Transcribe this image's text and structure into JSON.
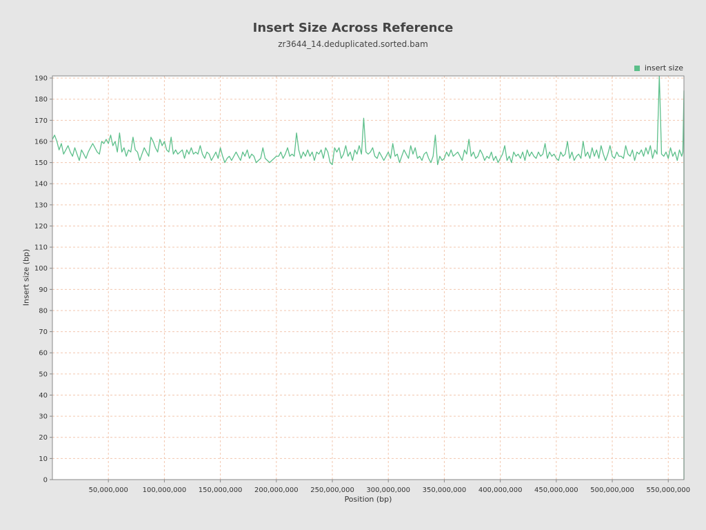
{
  "chart_data": {
    "type": "line",
    "title": "Insert Size Across Reference",
    "subtitle": "zr3644_14.deduplicated.sorted.bam",
    "xlabel": "Position (bp)",
    "ylabel": "Insert size (bp)",
    "xlim": [
      0,
      564000000
    ],
    "ylim": [
      0,
      191
    ],
    "x_ticks": [
      50000000,
      100000000,
      150000000,
      200000000,
      250000000,
      300000000,
      350000000,
      400000000,
      450000000,
      500000000,
      550000000
    ],
    "x_tick_labels": [
      "50,000,000",
      "100,000,000",
      "150,000,000",
      "200,000,000",
      "250,000,000",
      "300,000,000",
      "350,000,000",
      "400,000,000",
      "450,000,000",
      "500,000,000",
      "550,000,000"
    ],
    "y_ticks": [
      0,
      10,
      20,
      30,
      40,
      50,
      60,
      70,
      80,
      90,
      100,
      110,
      120,
      130,
      140,
      150,
      160,
      170,
      180,
      190
    ],
    "grid": true,
    "legend_position": "top-right",
    "series": [
      {
        "name": "insert size",
        "color": "#5cbf8a",
        "points": [
          [
            0,
            161
          ],
          [
            2000000,
            163
          ],
          [
            4000000,
            160
          ],
          [
            6000000,
            156
          ],
          [
            8000000,
            159
          ],
          [
            10000000,
            154
          ],
          [
            12000000,
            156
          ],
          [
            14000000,
            158
          ],
          [
            16000000,
            155
          ],
          [
            18000000,
            153
          ],
          [
            20000000,
            157
          ],
          [
            22000000,
            154
          ],
          [
            24000000,
            151
          ],
          [
            26000000,
            156
          ],
          [
            28000000,
            154
          ],
          [
            30000000,
            152
          ],
          [
            32000000,
            155
          ],
          [
            34000000,
            157
          ],
          [
            36000000,
            159
          ],
          [
            38000000,
            157
          ],
          [
            40000000,
            155
          ],
          [
            42000000,
            154
          ],
          [
            44000000,
            160
          ],
          [
            46000000,
            159
          ],
          [
            48000000,
            161
          ],
          [
            50000000,
            159
          ],
          [
            52000000,
            163
          ],
          [
            54000000,
            158
          ],
          [
            56000000,
            160
          ],
          [
            58000000,
            155
          ],
          [
            60000000,
            164
          ],
          [
            62000000,
            155
          ],
          [
            64000000,
            157
          ],
          [
            66000000,
            153
          ],
          [
            68000000,
            156
          ],
          [
            70000000,
            155
          ],
          [
            72000000,
            162
          ],
          [
            74000000,
            156
          ],
          [
            76000000,
            155
          ],
          [
            78000000,
            151
          ],
          [
            80000000,
            154
          ],
          [
            82000000,
            157
          ],
          [
            84000000,
            155
          ],
          [
            86000000,
            153
          ],
          [
            88000000,
            162
          ],
          [
            90000000,
            160
          ],
          [
            92000000,
            157
          ],
          [
            94000000,
            155
          ],
          [
            96000000,
            161
          ],
          [
            98000000,
            158
          ],
          [
            100000000,
            160
          ],
          [
            102000000,
            156
          ],
          [
            104000000,
            155
          ],
          [
            106000000,
            162
          ],
          [
            108000000,
            154
          ],
          [
            110000000,
            156
          ],
          [
            112000000,
            154
          ],
          [
            114000000,
            155
          ],
          [
            116000000,
            156
          ],
          [
            118000000,
            152
          ],
          [
            120000000,
            156
          ],
          [
            122000000,
            154
          ],
          [
            124000000,
            157
          ],
          [
            126000000,
            154
          ],
          [
            128000000,
            155
          ],
          [
            130000000,
            154
          ],
          [
            132000000,
            158
          ],
          [
            134000000,
            154
          ],
          [
            136000000,
            152
          ],
          [
            138000000,
            155
          ],
          [
            140000000,
            154
          ],
          [
            142000000,
            151
          ],
          [
            144000000,
            153
          ],
          [
            146000000,
            155
          ],
          [
            148000000,
            152
          ],
          [
            150000000,
            157
          ],
          [
            152000000,
            153
          ],
          [
            154000000,
            150
          ],
          [
            156000000,
            152
          ],
          [
            158000000,
            153
          ],
          [
            160000000,
            151
          ],
          [
            162000000,
            153
          ],
          [
            164000000,
            155
          ],
          [
            166000000,
            153
          ],
          [
            168000000,
            151
          ],
          [
            170000000,
            155
          ],
          [
            172000000,
            153
          ],
          [
            174000000,
            156
          ],
          [
            176000000,
            152
          ],
          [
            178000000,
            154
          ],
          [
            180000000,
            153
          ],
          [
            182000000,
            150
          ],
          [
            184000000,
            151
          ],
          [
            186000000,
            152
          ],
          [
            188000000,
            157
          ],
          [
            190000000,
            152
          ],
          [
            192000000,
            151
          ],
          [
            194000000,
            150
          ],
          [
            196000000,
            151
          ],
          [
            198000000,
            152
          ],
          [
            200000000,
            153
          ],
          [
            202000000,
            153
          ],
          [
            204000000,
            155
          ],
          [
            206000000,
            152
          ],
          [
            208000000,
            154
          ],
          [
            210000000,
            157
          ],
          [
            212000000,
            153
          ],
          [
            214000000,
            154
          ],
          [
            216000000,
            153
          ],
          [
            218000000,
            164
          ],
          [
            220000000,
            156
          ],
          [
            222000000,
            152
          ],
          [
            224000000,
            155
          ],
          [
            226000000,
            153
          ],
          [
            228000000,
            156
          ],
          [
            230000000,
            153
          ],
          [
            232000000,
            155
          ],
          [
            234000000,
            151
          ],
          [
            236000000,
            155
          ],
          [
            238000000,
            154
          ],
          [
            240000000,
            156
          ],
          [
            242000000,
            152
          ],
          [
            244000000,
            157
          ],
          [
            246000000,
            155
          ],
          [
            248000000,
            150
          ],
          [
            250000000,
            149
          ],
          [
            252000000,
            157
          ],
          [
            254000000,
            155
          ],
          [
            256000000,
            157
          ],
          [
            258000000,
            152
          ],
          [
            260000000,
            154
          ],
          [
            262000000,
            158
          ],
          [
            264000000,
            153
          ],
          [
            266000000,
            155
          ],
          [
            268000000,
            151
          ],
          [
            270000000,
            156
          ],
          [
            272000000,
            154
          ],
          [
            274000000,
            158
          ],
          [
            276000000,
            154
          ],
          [
            278000000,
            171
          ],
          [
            280000000,
            155
          ],
          [
            282000000,
            154
          ],
          [
            284000000,
            155
          ],
          [
            286000000,
            157
          ],
          [
            288000000,
            153
          ],
          [
            290000000,
            152
          ],
          [
            292000000,
            155
          ],
          [
            294000000,
            153
          ],
          [
            296000000,
            151
          ],
          [
            298000000,
            153
          ],
          [
            300000000,
            155
          ],
          [
            302000000,
            152
          ],
          [
            304000000,
            159
          ],
          [
            306000000,
            153
          ],
          [
            308000000,
            154
          ],
          [
            310000000,
            150
          ],
          [
            312000000,
            153
          ],
          [
            314000000,
            156
          ],
          [
            316000000,
            154
          ],
          [
            318000000,
            152
          ],
          [
            320000000,
            158
          ],
          [
            322000000,
            154
          ],
          [
            324000000,
            157
          ],
          [
            326000000,
            152
          ],
          [
            328000000,
            153
          ],
          [
            330000000,
            151
          ],
          [
            332000000,
            154
          ],
          [
            334000000,
            155
          ],
          [
            336000000,
            152
          ],
          [
            338000000,
            150
          ],
          [
            340000000,
            153
          ],
          [
            342000000,
            163
          ],
          [
            344000000,
            149
          ],
          [
            346000000,
            153
          ],
          [
            348000000,
            151
          ],
          [
            350000000,
            152
          ],
          [
            352000000,
            155
          ],
          [
            354000000,
            153
          ],
          [
            356000000,
            156
          ],
          [
            358000000,
            153
          ],
          [
            360000000,
            154
          ],
          [
            362000000,
            155
          ],
          [
            364000000,
            153
          ],
          [
            366000000,
            151
          ],
          [
            368000000,
            156
          ],
          [
            370000000,
            154
          ],
          [
            372000000,
            161
          ],
          [
            374000000,
            153
          ],
          [
            376000000,
            155
          ],
          [
            378000000,
            152
          ],
          [
            380000000,
            153
          ],
          [
            382000000,
            156
          ],
          [
            384000000,
            154
          ],
          [
            386000000,
            151
          ],
          [
            388000000,
            153
          ],
          [
            390000000,
            152
          ],
          [
            392000000,
            155
          ],
          [
            394000000,
            151
          ],
          [
            396000000,
            153
          ],
          [
            398000000,
            150
          ],
          [
            400000000,
            152
          ],
          [
            402000000,
            154
          ],
          [
            404000000,
            158
          ],
          [
            406000000,
            151
          ],
          [
            408000000,
            153
          ],
          [
            410000000,
            150
          ],
          [
            412000000,
            155
          ],
          [
            414000000,
            153
          ],
          [
            416000000,
            154
          ],
          [
            418000000,
            152
          ],
          [
            420000000,
            155
          ],
          [
            422000000,
            151
          ],
          [
            424000000,
            156
          ],
          [
            426000000,
            153
          ],
          [
            428000000,
            155
          ],
          [
            430000000,
            153
          ],
          [
            432000000,
            152
          ],
          [
            434000000,
            155
          ],
          [
            436000000,
            153
          ],
          [
            438000000,
            154
          ],
          [
            440000000,
            159
          ],
          [
            442000000,
            152
          ],
          [
            444000000,
            155
          ],
          [
            446000000,
            153
          ],
          [
            448000000,
            154
          ],
          [
            450000000,
            152
          ],
          [
            452000000,
            151
          ],
          [
            454000000,
            155
          ],
          [
            456000000,
            153
          ],
          [
            458000000,
            154
          ],
          [
            460000000,
            160
          ],
          [
            462000000,
            152
          ],
          [
            464000000,
            155
          ],
          [
            466000000,
            151
          ],
          [
            468000000,
            153
          ],
          [
            470000000,
            154
          ],
          [
            472000000,
            152
          ],
          [
            474000000,
            160
          ],
          [
            476000000,
            153
          ],
          [
            478000000,
            155
          ],
          [
            480000000,
            152
          ],
          [
            482000000,
            157
          ],
          [
            484000000,
            153
          ],
          [
            486000000,
            156
          ],
          [
            488000000,
            152
          ],
          [
            490000000,
            158
          ],
          [
            492000000,
            154
          ],
          [
            494000000,
            151
          ],
          [
            496000000,
            154
          ],
          [
            498000000,
            158
          ],
          [
            500000000,
            153
          ],
          [
            502000000,
            152
          ],
          [
            504000000,
            155
          ],
          [
            506000000,
            153
          ],
          [
            508000000,
            153
          ],
          [
            510000000,
            152
          ],
          [
            512000000,
            158
          ],
          [
            514000000,
            154
          ],
          [
            516000000,
            153
          ],
          [
            518000000,
            156
          ],
          [
            520000000,
            151
          ],
          [
            522000000,
            155
          ],
          [
            524000000,
            154
          ],
          [
            526000000,
            156
          ],
          [
            528000000,
            153
          ],
          [
            530000000,
            157
          ],
          [
            532000000,
            154
          ],
          [
            534000000,
            158
          ],
          [
            536000000,
            152
          ],
          [
            538000000,
            156
          ],
          [
            540000000,
            154
          ],
          [
            542000000,
            191
          ],
          [
            544000000,
            154
          ],
          [
            546000000,
            153
          ],
          [
            548000000,
            155
          ],
          [
            550000000,
            152
          ],
          [
            552000000,
            157
          ],
          [
            554000000,
            153
          ],
          [
            556000000,
            155
          ],
          [
            558000000,
            151
          ],
          [
            560000000,
            156
          ],
          [
            562000000,
            153
          ],
          [
            563000000,
            155
          ],
          [
            564000000,
            184
          ],
          [
            564000000,
            0
          ]
        ]
      }
    ]
  }
}
